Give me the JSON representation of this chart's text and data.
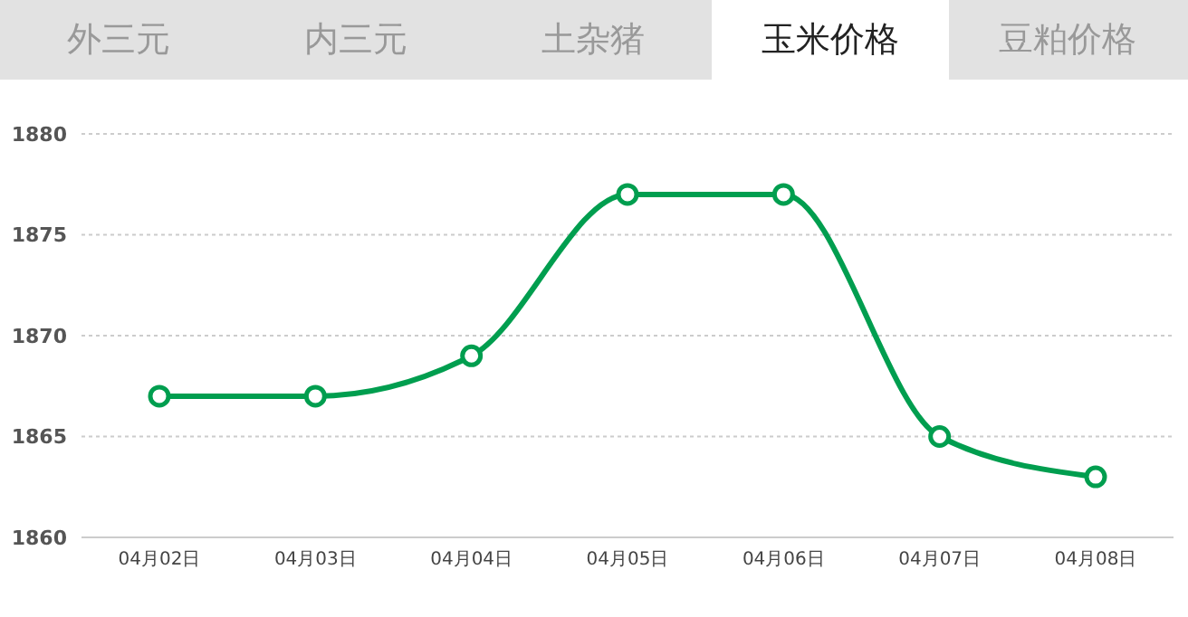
{
  "chart_data": {
    "type": "line",
    "title": "玉米价格",
    "annotations": [
      "外三元",
      "内三元",
      "土杂猪",
      "豆粕价格"
    ],
    "categories": [
      "04月02日",
      "04月03日",
      "04月04日",
      "04月05日",
      "04月06日",
      "04月07日",
      "04月08日"
    ],
    "series": [
      {
        "color": "#009e4f",
        "values": [
          1867,
          1867,
          1869,
          1877,
          1877,
          1865,
          1863
        ]
      }
    ],
    "ylim": [
      1860,
      1880
    ],
    "yticks": [
      1860,
      1865,
      1870,
      1875,
      1880
    ],
    "grid": "y",
    "marker": "circle",
    "line_style": "solid",
    "legend": false
  }
}
